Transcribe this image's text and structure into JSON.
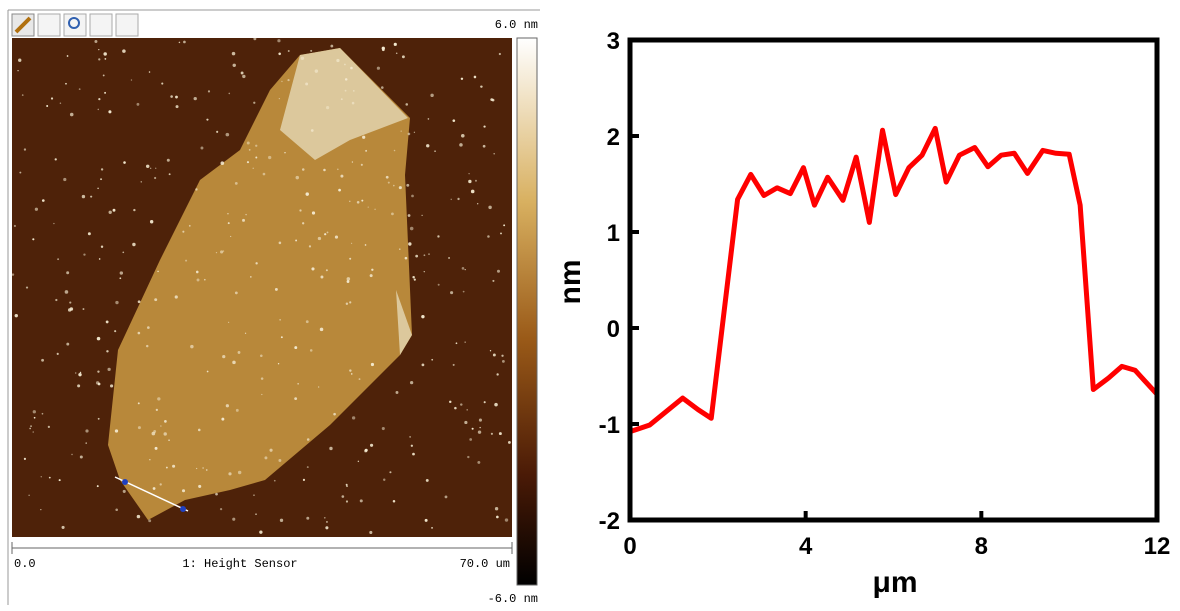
{
  "afm": {
    "scale_max": "6.0 nm",
    "scale_min": "-6.0 nm",
    "x_start": "0.0",
    "x_end": "70.0 um",
    "channel": "1: Height Sensor"
  },
  "chart_data": {
    "type": "line",
    "xlabel": "μm",
    "ylabel": "nm",
    "color": "#ff0000",
    "x": [
      0,
      0.45,
      1.2,
      1.55,
      1.85,
      2.45,
      2.75,
      3.05,
      3.35,
      3.65,
      3.95,
      4.2,
      4.5,
      4.85,
      5.15,
      5.45,
      5.75,
      6.05,
      6.35,
      6.65,
      6.95,
      7.2,
      7.5,
      7.85,
      8.15,
      8.45,
      8.75,
      9.05,
      9.4,
      9.7,
      10.0,
      10.25,
      10.55,
      10.9,
      11.2,
      11.5,
      12
    ],
    "values": [
      -1.08,
      -1.01,
      -0.73,
      -0.85,
      -0.94,
      1.34,
      1.6,
      1.38,
      1.46,
      1.4,
      1.67,
      1.28,
      1.57,
      1.33,
      1.78,
      1.1,
      2.06,
      1.39,
      1.67,
      1.8,
      2.08,
      1.52,
      1.8,
      1.88,
      1.68,
      1.8,
      1.82,
      1.61,
      1.85,
      1.82,
      1.81,
      1.28,
      -0.64,
      -0.52,
      -0.4,
      -0.44,
      -0.69
    ],
    "xlim": [
      0,
      12
    ],
    "xticks": [
      0,
      4,
      8,
      12
    ],
    "ylim": [
      -2,
      3
    ],
    "yticks": [
      -2,
      -1,
      0,
      1,
      2,
      3
    ]
  }
}
